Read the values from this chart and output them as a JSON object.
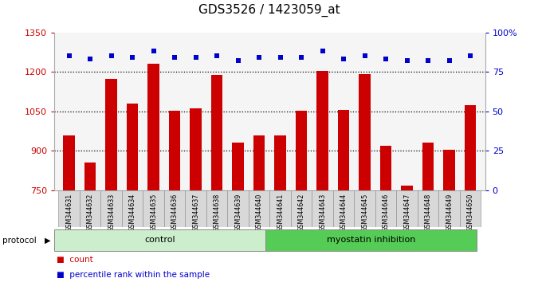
{
  "title": "GDS3526 / 1423059_at",
  "samples": [
    "GSM344631",
    "GSM344632",
    "GSM344633",
    "GSM344634",
    "GSM344635",
    "GSM344636",
    "GSM344637",
    "GSM344638",
    "GSM344639",
    "GSM344640",
    "GSM344641",
    "GSM344642",
    "GSM344643",
    "GSM344644",
    "GSM344645",
    "GSM344646",
    "GSM344647",
    "GSM344648",
    "GSM344649",
    "GSM344650"
  ],
  "counts": [
    960,
    855,
    1175,
    1080,
    1232,
    1052,
    1062,
    1188,
    930,
    960,
    960,
    1052,
    1205,
    1055,
    1192,
    920,
    768,
    930,
    903,
    1075
  ],
  "percentile_ranks": [
    85,
    83,
    85,
    84,
    88,
    84,
    84,
    85,
    82,
    84,
    84,
    84,
    88,
    83,
    85,
    83,
    82,
    82,
    82,
    85
  ],
  "control_count": 10,
  "myostatin_count": 10,
  "bar_color": "#cc0000",
  "dot_color": "#0000cc",
  "ylim_left": [
    750,
    1350
  ],
  "ylim_right": [
    0,
    100
  ],
  "yticks_left": [
    750,
    900,
    1050,
    1200,
    1350
  ],
  "yticks_right": [
    0,
    25,
    50,
    75,
    100
  ],
  "ytick_right_labels": [
    "0",
    "25",
    "50",
    "75",
    "100%"
  ],
  "hline_values": [
    900,
    1050,
    1200
  ],
  "control_label": "control",
  "myostatin_label": "myostatin inhibition",
  "protocol_label": "protocol",
  "legend_count_label": "count",
  "legend_pct_label": "percentile rank within the sample",
  "bg_plot": "#f5f5f5",
  "bg_xticklabels": "#d8d8d8",
  "bg_control": "#cceecc",
  "bg_myostatin": "#55cc55",
  "title_fontsize": 11,
  "bar_width": 0.55,
  "dot_size": 20
}
